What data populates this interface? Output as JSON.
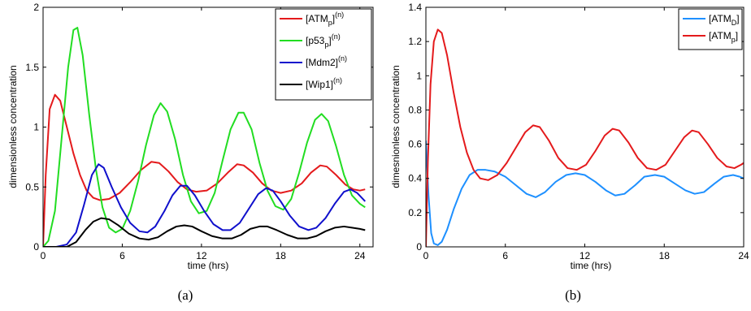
{
  "captions": [
    "(a)",
    "(b)"
  ],
  "chart_data": [
    {
      "type": "line",
      "panel_caption": "(a)",
      "xlabel": "time (hrs)",
      "ylabel": "dimensionless concentration",
      "xlim": [
        0,
        25
      ],
      "ylim": [
        0,
        2
      ],
      "xticks": [
        "0",
        "6",
        "12",
        "18",
        "24"
      ],
      "yticks": [
        "0",
        "0.5",
        "1",
        "1.5",
        "2"
      ],
      "legend_position": "top-right",
      "series": [
        {
          "name": "[ATM_p]^(n)",
          "legend_main": "[ATM",
          "legend_sub": "p",
          "legend_tail": "]",
          "legend_sup": "(n)",
          "color": "#e41a1c",
          "points": [
            [
              0,
              0.0
            ],
            [
              0.2,
              0.6
            ],
            [
              0.5,
              1.15
            ],
            [
              0.9,
              1.27
            ],
            [
              1.3,
              1.22
            ],
            [
              1.8,
              1.0
            ],
            [
              2.3,
              0.78
            ],
            [
              2.8,
              0.6
            ],
            [
              3.3,
              0.47
            ],
            [
              3.8,
              0.41
            ],
            [
              4.3,
              0.39
            ],
            [
              5.0,
              0.4
            ],
            [
              5.8,
              0.45
            ],
            [
              6.6,
              0.54
            ],
            [
              7.4,
              0.64
            ],
            [
              8.2,
              0.71
            ],
            [
              8.8,
              0.7
            ],
            [
              9.5,
              0.63
            ],
            [
              10.2,
              0.54
            ],
            [
              10.9,
              0.48
            ],
            [
              11.6,
              0.46
            ],
            [
              12.4,
              0.47
            ],
            [
              13.2,
              0.53
            ],
            [
              14.0,
              0.62
            ],
            [
              14.7,
              0.69
            ],
            [
              15.2,
              0.68
            ],
            [
              15.9,
              0.62
            ],
            [
              16.6,
              0.53
            ],
            [
              17.3,
              0.47
            ],
            [
              18.0,
              0.45
            ],
            [
              18.8,
              0.47
            ],
            [
              19.6,
              0.53
            ],
            [
              20.3,
              0.62
            ],
            [
              21.0,
              0.68
            ],
            [
              21.5,
              0.67
            ],
            [
              22.2,
              0.6
            ],
            [
              22.9,
              0.52
            ],
            [
              23.5,
              0.48
            ],
            [
              24.0,
              0.47
            ],
            [
              24.4,
              0.48
            ]
          ]
        },
        {
          "name": "[p53_p]^(n)",
          "legend_main": "[p53",
          "legend_sub": "p",
          "legend_tail": "]",
          "legend_sup": "(n)",
          "color": "#22dd22",
          "points": [
            [
              0,
              0.0
            ],
            [
              0.4,
              0.05
            ],
            [
              0.9,
              0.3
            ],
            [
              1.4,
              0.9
            ],
            [
              1.9,
              1.5
            ],
            [
              2.3,
              1.81
            ],
            [
              2.6,
              1.83
            ],
            [
              3.0,
              1.6
            ],
            [
              3.5,
              1.1
            ],
            [
              4.0,
              0.65
            ],
            [
              4.5,
              0.33
            ],
            [
              5.0,
              0.16
            ],
            [
              5.5,
              0.12
            ],
            [
              6.0,
              0.15
            ],
            [
              6.6,
              0.3
            ],
            [
              7.2,
              0.55
            ],
            [
              7.8,
              0.85
            ],
            [
              8.4,
              1.1
            ],
            [
              8.9,
              1.2
            ],
            [
              9.4,
              1.13
            ],
            [
              10.0,
              0.9
            ],
            [
              10.6,
              0.6
            ],
            [
              11.2,
              0.38
            ],
            [
              11.8,
              0.28
            ],
            [
              12.4,
              0.3
            ],
            [
              13.0,
              0.45
            ],
            [
              13.6,
              0.72
            ],
            [
              14.2,
              0.98
            ],
            [
              14.8,
              1.12
            ],
            [
              15.2,
              1.12
            ],
            [
              15.8,
              0.98
            ],
            [
              16.4,
              0.7
            ],
            [
              17.0,
              0.47
            ],
            [
              17.6,
              0.34
            ],
            [
              18.2,
              0.31
            ],
            [
              18.8,
              0.4
            ],
            [
              19.4,
              0.62
            ],
            [
              20.0,
              0.87
            ],
            [
              20.6,
              1.06
            ],
            [
              21.1,
              1.11
            ],
            [
              21.6,
              1.05
            ],
            [
              22.2,
              0.84
            ],
            [
              22.8,
              0.6
            ],
            [
              23.4,
              0.43
            ],
            [
              24.0,
              0.36
            ],
            [
              24.4,
              0.33
            ]
          ]
        },
        {
          "name": "[Mdm2]^(n)",
          "legend_main": "[Mdm2]",
          "legend_sub": "",
          "legend_tail": "",
          "legend_sup": "(n)",
          "color": "#1010cc",
          "points": [
            [
              0,
              0.0
            ],
            [
              1.0,
              0.0
            ],
            [
              1.8,
              0.02
            ],
            [
              2.5,
              0.12
            ],
            [
              3.1,
              0.35
            ],
            [
              3.7,
              0.6
            ],
            [
              4.2,
              0.69
            ],
            [
              4.6,
              0.66
            ],
            [
              5.2,
              0.5
            ],
            [
              5.9,
              0.33
            ],
            [
              6.6,
              0.2
            ],
            [
              7.3,
              0.13
            ],
            [
              7.9,
              0.12
            ],
            [
              8.5,
              0.17
            ],
            [
              9.2,
              0.3
            ],
            [
              9.8,
              0.43
            ],
            [
              10.4,
              0.51
            ],
            [
              10.9,
              0.51
            ],
            [
              11.5,
              0.43
            ],
            [
              12.2,
              0.3
            ],
            [
              12.9,
              0.19
            ],
            [
              13.6,
              0.14
            ],
            [
              14.2,
              0.14
            ],
            [
              14.9,
              0.2
            ],
            [
              15.6,
              0.32
            ],
            [
              16.3,
              0.44
            ],
            [
              16.9,
              0.49
            ],
            [
              17.4,
              0.47
            ],
            [
              18.0,
              0.38
            ],
            [
              18.7,
              0.26
            ],
            [
              19.4,
              0.17
            ],
            [
              20.1,
              0.14
            ],
            [
              20.7,
              0.16
            ],
            [
              21.4,
              0.24
            ],
            [
              22.1,
              0.36
            ],
            [
              22.8,
              0.46
            ],
            [
              23.3,
              0.48
            ],
            [
              23.8,
              0.45
            ],
            [
              24.4,
              0.38
            ]
          ]
        },
        {
          "name": "[Wip1]^(n)",
          "legend_main": "[Wip1]",
          "legend_sub": "",
          "legend_tail": "",
          "legend_sup": "(n)",
          "color": "#000000",
          "points": [
            [
              0,
              0.0
            ],
            [
              1.8,
              0.0
            ],
            [
              2.5,
              0.04
            ],
            [
              3.2,
              0.14
            ],
            [
              3.8,
              0.21
            ],
            [
              4.4,
              0.24
            ],
            [
              5.0,
              0.23
            ],
            [
              5.7,
              0.18
            ],
            [
              6.5,
              0.11
            ],
            [
              7.3,
              0.07
            ],
            [
              8.0,
              0.06
            ],
            [
              8.7,
              0.08
            ],
            [
              9.4,
              0.13
            ],
            [
              10.1,
              0.17
            ],
            [
              10.7,
              0.18
            ],
            [
              11.3,
              0.17
            ],
            [
              12.0,
              0.13
            ],
            [
              12.8,
              0.09
            ],
            [
              13.6,
              0.07
            ],
            [
              14.3,
              0.07
            ],
            [
              15.0,
              0.1
            ],
            [
              15.7,
              0.15
            ],
            [
              16.4,
              0.17
            ],
            [
              17.0,
              0.17
            ],
            [
              17.7,
              0.14
            ],
            [
              18.5,
              0.1
            ],
            [
              19.3,
              0.07
            ],
            [
              20.0,
              0.07
            ],
            [
              20.7,
              0.09
            ],
            [
              21.4,
              0.13
            ],
            [
              22.1,
              0.16
            ],
            [
              22.8,
              0.17
            ],
            [
              23.4,
              0.16
            ],
            [
              24.0,
              0.15
            ],
            [
              24.4,
              0.14
            ]
          ]
        }
      ]
    },
    {
      "type": "line",
      "panel_caption": "(b)",
      "xlabel": "time (hrs)",
      "ylabel": "dimesnionless concentration",
      "xlim": [
        0,
        24
      ],
      "ylim": [
        0,
        1.4
      ],
      "xticks": [
        "0",
        "6",
        "12",
        "18",
        "24"
      ],
      "yticks": [
        "0",
        "0.2",
        "0.4",
        "0.6",
        "0.8",
        "1",
        "1.2",
        "1.4"
      ],
      "legend_position": "top-right",
      "series": [
        {
          "name": "[ATM_D]",
          "legend_main": "[ATM",
          "legend_sub": "D",
          "legend_tail": "]",
          "legend_sup": "",
          "color": "#1e90ff",
          "points": [
            [
              0,
              0.62
            ],
            [
              0.2,
              0.3
            ],
            [
              0.4,
              0.08
            ],
            [
              0.6,
              0.02
            ],
            [
              0.9,
              0.01
            ],
            [
              1.2,
              0.03
            ],
            [
              1.6,
              0.1
            ],
            [
              2.1,
              0.22
            ],
            [
              2.7,
              0.34
            ],
            [
              3.3,
              0.42
            ],
            [
              3.9,
              0.45
            ],
            [
              4.5,
              0.45
            ],
            [
              5.2,
              0.44
            ],
            [
              6.0,
              0.41
            ],
            [
              6.8,
              0.36
            ],
            [
              7.6,
              0.31
            ],
            [
              8.3,
              0.29
            ],
            [
              9.0,
              0.32
            ],
            [
              9.8,
              0.38
            ],
            [
              10.6,
              0.42
            ],
            [
              11.3,
              0.43
            ],
            [
              12.0,
              0.42
            ],
            [
              12.8,
              0.38
            ],
            [
              13.6,
              0.33
            ],
            [
              14.3,
              0.3
            ],
            [
              15.0,
              0.31
            ],
            [
              15.8,
              0.36
            ],
            [
              16.5,
              0.41
            ],
            [
              17.3,
              0.42
            ],
            [
              18.0,
              0.41
            ],
            [
              18.8,
              0.37
            ],
            [
              19.6,
              0.33
            ],
            [
              20.3,
              0.31
            ],
            [
              21.0,
              0.32
            ],
            [
              21.8,
              0.37
            ],
            [
              22.5,
              0.41
            ],
            [
              23.2,
              0.42
            ],
            [
              23.7,
              0.41
            ],
            [
              24.0,
              0.4
            ]
          ]
        },
        {
          "name": "[ATM_p]",
          "legend_main": "[ATM",
          "legend_sub": "p",
          "legend_tail": "]",
          "legend_sup": "",
          "color": "#e41a1c",
          "points": [
            [
              0,
              0.0
            ],
            [
              0.15,
              0.5
            ],
            [
              0.35,
              0.95
            ],
            [
              0.6,
              1.2
            ],
            [
              0.9,
              1.27
            ],
            [
              1.2,
              1.25
            ],
            [
              1.6,
              1.12
            ],
            [
              2.1,
              0.9
            ],
            [
              2.6,
              0.7
            ],
            [
              3.1,
              0.55
            ],
            [
              3.6,
              0.45
            ],
            [
              4.1,
              0.4
            ],
            [
              4.7,
              0.39
            ],
            [
              5.4,
              0.42
            ],
            [
              6.1,
              0.49
            ],
            [
              6.8,
              0.58
            ],
            [
              7.5,
              0.67
            ],
            [
              8.1,
              0.71
            ],
            [
              8.6,
              0.7
            ],
            [
              9.3,
              0.62
            ],
            [
              10.0,
              0.52
            ],
            [
              10.7,
              0.46
            ],
            [
              11.4,
              0.45
            ],
            [
              12.1,
              0.48
            ],
            [
              12.8,
              0.56
            ],
            [
              13.5,
              0.65
            ],
            [
              14.1,
              0.69
            ],
            [
              14.6,
              0.68
            ],
            [
              15.3,
              0.61
            ],
            [
              16.0,
              0.52
            ],
            [
              16.7,
              0.46
            ],
            [
              17.4,
              0.45
            ],
            [
              18.1,
              0.48
            ],
            [
              18.8,
              0.56
            ],
            [
              19.5,
              0.64
            ],
            [
              20.1,
              0.68
            ],
            [
              20.6,
              0.67
            ],
            [
              21.3,
              0.6
            ],
            [
              22.0,
              0.52
            ],
            [
              22.7,
              0.47
            ],
            [
              23.3,
              0.46
            ],
            [
              23.8,
              0.48
            ],
            [
              24.0,
              0.49
            ]
          ]
        }
      ]
    }
  ]
}
